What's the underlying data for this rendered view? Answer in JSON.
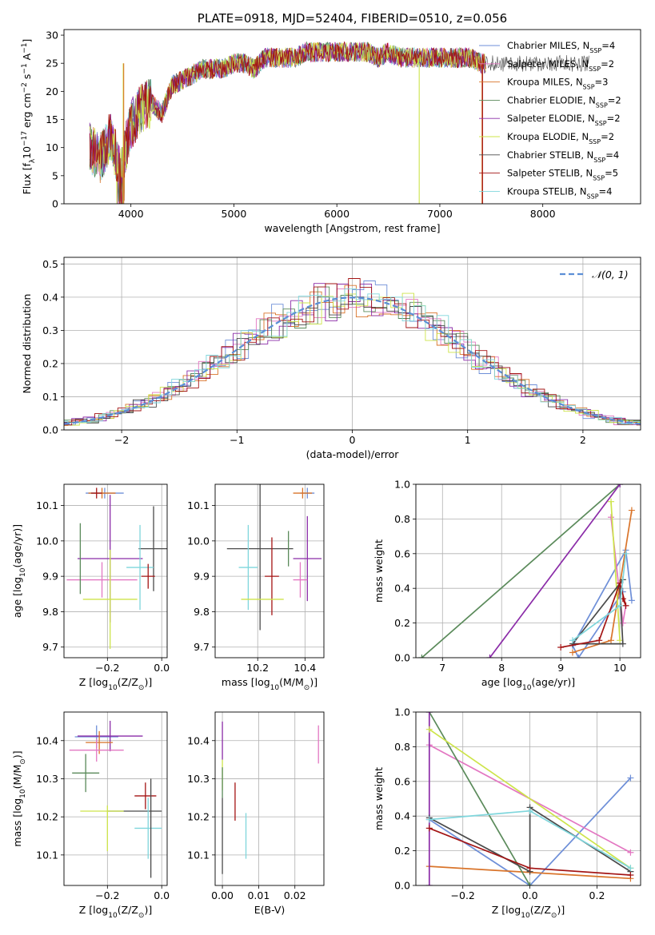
{
  "chart_data": [
    {
      "id": "spectrum",
      "type": "line",
      "title": "PLATE=0918, MJD=52404, FIBERID=0510, z=0.056",
      "xlabel": "wavelength [Angstrom, rest frame]",
      "ylabel": "Flux [f",
      "ylabel_sub": "λ",
      "ylabel_rest": "10",
      "ylabel_exp1": "−17",
      "ylabel_rest2": " erg cm",
      "ylabel_exp2": "−2",
      "ylabel_rest3": " s",
      "ylabel_exp3": "−1",
      "ylabel_rest4": " A",
      "ylabel_exp4": "−1",
      "ylabel_end": "]",
      "xlim": [
        3350,
        8950
      ],
      "ylim": [
        0,
        31
      ],
      "xticks": [
        4000,
        5000,
        6000,
        7000,
        8000
      ],
      "yticks": [
        0,
        5,
        10,
        15,
        20,
        25,
        30
      ],
      "grid": false,
      "legend_position": "top-right",
      "legend": [
        {
          "name": "Chabrier MILES, N",
          "sub": "SSP",
          "suffix": "=4",
          "color": "#6e8fd8"
        },
        {
          "name": "Salpeter MILES, N",
          "sub": "SSP",
          "suffix": "=2",
          "color": "#e377c2"
        },
        {
          "name": "Kroupa MILES, N",
          "sub": "SSP",
          "suffix": "=3",
          "color": "#d9742a"
        },
        {
          "name": "Chabrier ELODIE, N",
          "sub": "SSP",
          "suffix": "=2",
          "color": "#5a8a5a"
        },
        {
          "name": "Salpeter ELODIE, N",
          "sub": "SSP",
          "suffix": "=2",
          "color": "#8b2ca8"
        },
        {
          "name": "Kroupa ELODIE, N",
          "sub": "SSP",
          "suffix": "=2",
          "color": "#cde44a"
        },
        {
          "name": "Chabrier STELIB, N",
          "sub": "SSP",
          "suffix": "=4",
          "color": "#4a4a4a"
        },
        {
          "name": "Salpeter STELIB, N",
          "sub": "SSP",
          "suffix": "=5",
          "color": "#a31414"
        },
        {
          "name": "Kroupa STELIB, N",
          "sub": "SSP",
          "suffix": "=4",
          "color": "#7fd6dc"
        }
      ],
      "series": [
        {
          "name": "Chabrier MILES",
          "x": [
            3600,
            3700,
            3800,
            3900,
            4000,
            4100,
            4200,
            4300,
            4400,
            4500,
            4600,
            4700,
            4800,
            4900,
            5000,
            5100,
            5200,
            5300,
            5400,
            5500,
            5600,
            5700,
            5800,
            5900,
            6000,
            6100,
            6200,
            6300,
            6400,
            6500,
            6600,
            6700,
            6800,
            6900,
            7000,
            7100,
            7200,
            7300,
            7400,
            7450
          ],
          "y": [
            10,
            8,
            12,
            6,
            14,
            17,
            18,
            16,
            21,
            22,
            23,
            24,
            24,
            24,
            25,
            25,
            24,
            26,
            26,
            26,
            26,
            27,
            27,
            27,
            27,
            27,
            27,
            27,
            26,
            27,
            26,
            26,
            26,
            26,
            26,
            26,
            26,
            26,
            25,
            25
          ]
        }
      ]
    },
    {
      "id": "residuals",
      "type": "line",
      "xlabel": "(data-model)/error",
      "ylabel": "Normed distribution",
      "xlim": [
        -2.5,
        2.5
      ],
      "ylim": [
        0,
        0.52
      ],
      "xticks": [
        -2,
        -1,
        0,
        1,
        2
      ],
      "yticks": [
        0.0,
        0.1,
        0.2,
        0.3,
        0.4,
        0.5
      ],
      "grid": true,
      "legend_position": "top-right",
      "legend": [
        {
          "name": "𝒩(0, 1)",
          "color": "#5b8ed6"
        }
      ],
      "gaussian": {
        "mean": 0,
        "sigma": 1
      },
      "bin_width": 0.1
    },
    {
      "id": "z-age",
      "type": "scatter",
      "xlabel": "Z [log",
      "xlabel_sub": "10",
      "xlabel_rest": "(Z/Z",
      "xlabel_sub2": "⊙",
      "xlabel_end": ")]",
      "ylabel": "age  [log",
      "ylabel_sub": "10",
      "ylabel_rest": "(age/yr)]",
      "xlim": [
        -0.36,
        0.02
      ],
      "ylim": [
        9.67,
        10.16
      ],
      "xticks": [
        -0.2,
        0.0
      ],
      "yticks": [
        9.7,
        9.8,
        9.9,
        10.0,
        10.1
      ],
      "grid": true,
      "points": [
        {
          "x": -0.21,
          "y": 10.135,
          "xerr": 0.07,
          "yerr": 0.015,
          "color": "#6e8fd8"
        },
        {
          "x": -0.22,
          "y": 10.135,
          "xerr": 0.05,
          "yerr": 0.015,
          "color": "#d9742a"
        },
        {
          "x": -0.24,
          "y": 10.135,
          "xerr": 0.02,
          "yerr": 0.015,
          "color": "#a31414"
        },
        {
          "x": -0.03,
          "y": 9.978,
          "xerr": 0.055,
          "yerr": 0.12,
          "color": "#4a4a4a"
        },
        {
          "x": -0.19,
          "y": 9.95,
          "xerr": 0.12,
          "yerr": 0.18,
          "color": "#8b2ca8"
        },
        {
          "x": -0.08,
          "y": 9.925,
          "xerr": 0.05,
          "yerr": 0.12,
          "color": "#7fd6dc"
        },
        {
          "x": -0.05,
          "y": 9.9,
          "xerr": 0.025,
          "yerr": 0.035,
          "color": "#a31414"
        },
        {
          "x": -0.22,
          "y": 9.89,
          "xerr": 0.13,
          "yerr": 0.05,
          "color": "#e377c2"
        },
        {
          "x": -0.19,
          "y": 9.835,
          "xerr": 0.1,
          "yerr": 0.14,
          "color": "#cde44a"
        },
        {
          "x": -0.3,
          "y": 9.95,
          "xerr": 0.0,
          "yerr": 0.1,
          "color": "#5a8a5a"
        }
      ]
    },
    {
      "id": "mass-age",
      "type": "scatter",
      "xlabel": "mass [log",
      "xlabel_sub": "10",
      "xlabel_rest": "(M/M",
      "xlabel_sub2": "⊙",
      "xlabel_end": ")]",
      "xlim": [
        10.02,
        10.48
      ],
      "ylim": [
        9.67,
        10.16
      ],
      "xticks": [
        10.2,
        10.4
      ],
      "yticks": [
        9.7,
        9.8,
        9.9,
        10.0,
        10.1
      ],
      "grid": true,
      "points": [
        {
          "x": 10.41,
          "y": 10.135,
          "xerr": 0.03,
          "yerr": 0.015,
          "color": "#6e8fd8"
        },
        {
          "x": 10.39,
          "y": 10.135,
          "xerr": 0.04,
          "yerr": 0.015,
          "color": "#d9742a"
        },
        {
          "x": 10.21,
          "y": 9.978,
          "xerr": 0.14,
          "yerr": 0.23,
          "color": "#4a4a4a"
        },
        {
          "x": 10.41,
          "y": 9.95,
          "xerr": 0.06,
          "yerr": 0.12,
          "color": "#8b2ca8"
        },
        {
          "x": 10.16,
          "y": 9.925,
          "xerr": 0.04,
          "yerr": 0.12,
          "color": "#7fd6dc"
        },
        {
          "x": 10.26,
          "y": 9.9,
          "xerr": 0.03,
          "yerr": 0.11,
          "color": "#a31414"
        },
        {
          "x": 10.38,
          "y": 9.89,
          "xerr": 0.03,
          "yerr": 0.05,
          "color": "#e377c2"
        },
        {
          "x": 10.22,
          "y": 9.835,
          "xerr": 0.09,
          "yerr": 0.0,
          "color": "#cde44a"
        },
        {
          "x": 10.33,
          "y": 9.978,
          "xerr": 0.0,
          "yerr": 0.05,
          "color": "#5a8a5a"
        }
      ]
    },
    {
      "id": "age-weight",
      "type": "line",
      "xlabel": "age  [log",
      "xlabel_sub": "10",
      "xlabel_rest": "(age/yr)]",
      "ylabel": "mass weight",
      "xlim": [
        6.55,
        10.35
      ],
      "ylim": [
        0,
        1.0
      ],
      "xticks": [
        7,
        8,
        9,
        10
      ],
      "yticks": [
        0.0,
        0.2,
        0.4,
        0.6,
        0.8,
        1.0
      ],
      "grid": true,
      "series": [
        {
          "color": "#6e8fd8",
          "x": [
            10.2,
            10.1,
            9.2,
            9.3,
            10.05
          ],
          "y": [
            0.33,
            0.62,
            0.07,
            0.0,
            0.38
          ]
        },
        {
          "color": "#e377c2",
          "x": [
            9.85,
            10.05,
            10.1
          ],
          "y": [
            0.81,
            0.2,
            0.3
          ]
        },
        {
          "color": "#d9742a",
          "x": [
            10.2,
            9.85,
            9.2
          ],
          "y": [
            0.85,
            0.1,
            0.03
          ]
        },
        {
          "color": "#5a8a5a",
          "x": [
            6.65,
            10.0
          ],
          "y": [
            0.0,
            1.0
          ]
        },
        {
          "color": "#8b2ca8",
          "x": [
            7.8,
            10.0
          ],
          "y": [
            0.0,
            1.0
          ]
        },
        {
          "color": "#cde44a",
          "x": [
            9.85,
            10.0
          ],
          "y": [
            0.9,
            0.1
          ]
        },
        {
          "color": "#4a4a4a",
          "x": [
            10.05,
            9.2,
            10.05,
            10.0
          ],
          "y": [
            0.45,
            0.08,
            0.08,
            0.4
          ]
        },
        {
          "color": "#a31414",
          "x": [
            9.0,
            9.65,
            10.0,
            10.1,
            10.05
          ],
          "y": [
            0.06,
            0.1,
            0.43,
            0.3,
            0.34
          ]
        },
        {
          "color": "#7fd6dc",
          "x": [
            9.2,
            10.0,
            10.1
          ],
          "y": [
            0.1,
            0.3,
            0.6
          ]
        }
      ]
    },
    {
      "id": "z-mass",
      "type": "scatter",
      "xlabel": "Z [log",
      "xlabel_sub": "10",
      "xlabel_rest": "(Z/Z",
      "xlabel_sub2": "⊙",
      "xlabel_end": ")]",
      "ylabel": "mass [log",
      "ylabel_sub": "10",
      "ylabel_rest": "(M/M",
      "ylabel_sub2": "⊙",
      "ylabel_end": ")]",
      "xlim": [
        -0.36,
        0.02
      ],
      "ylim": [
        10.02,
        10.475
      ],
      "xticks": [
        -0.2,
        0.0
      ],
      "yticks": [
        10.1,
        10.2,
        10.3,
        10.4
      ],
      "grid": true,
      "points": [
        {
          "x": -0.24,
          "y": 10.41,
          "xerr": 0.08,
          "yerr": 0.03,
          "color": "#6e8fd8"
        },
        {
          "x": -0.19,
          "y": 10.412,
          "xerr": 0.12,
          "yerr": 0.04,
          "color": "#8b2ca8"
        },
        {
          "x": -0.23,
          "y": 10.395,
          "xerr": 0.05,
          "yerr": 0.03,
          "color": "#d9742a"
        },
        {
          "x": -0.24,
          "y": 10.375,
          "xerr": 0.1,
          "yerr": 0.03,
          "color": "#e377c2"
        },
        {
          "x": -0.28,
          "y": 10.315,
          "xerr": 0.05,
          "yerr": 0.05,
          "color": "#5a8a5a"
        },
        {
          "x": -0.06,
          "y": 10.255,
          "xerr": 0.04,
          "yerr": 0.035,
          "color": "#a31414"
        },
        {
          "x": -0.1,
          "y": 10.215,
          "xerr": 0.1,
          "yerr": 0.0,
          "color": "#4a4a4a"
        },
        {
          "x": -0.22,
          "y": 10.215,
          "xerr": 0.08,
          "yerr": 0.0,
          "color": "#cde44a"
        },
        {
          "x": -0.05,
          "y": 10.17,
          "xerr": 0.05,
          "yerr": 0.08,
          "color": "#7fd6dc"
        },
        {
          "x": -0.04,
          "y": 10.17,
          "xerr": 0.0,
          "yerr": 0.13,
          "color": "#4a4a4a"
        },
        {
          "x": -0.2,
          "y": 10.17,
          "xerr": 0.0,
          "yerr": 0.06,
          "color": "#cde44a"
        }
      ]
    },
    {
      "id": "ebv-mass",
      "type": "scatter",
      "xlabel": "E(B-V)",
      "xlim": [
        -0.002,
        0.028
      ],
      "ylim": [
        10.02,
        10.475
      ],
      "xticks": [
        0.0,
        0.01,
        0.02
      ],
      "yticks": [
        10.1,
        10.2,
        10.3,
        10.4
      ],
      "grid": true,
      "points": [
        {
          "x": 0.0,
          "y": 10.4,
          "xerr": 0.0,
          "yerr": 0.05,
          "color": "#8b2ca8"
        },
        {
          "x": 0.0,
          "y": 10.31,
          "xerr": 0.0,
          "yerr": 0.04,
          "color": "#cde44a"
        },
        {
          "x": 0.0,
          "y": 10.15,
          "xerr": 0.0,
          "yerr": 0.1,
          "color": "#4a4a4a"
        },
        {
          "x": 0.0,
          "y": 10.29,
          "xerr": 0.0,
          "yerr": 0.04,
          "color": "#5a8a5a"
        },
        {
          "x": 0.0035,
          "y": 10.24,
          "xerr": 0.0,
          "yerr": 0.05,
          "color": "#a31414"
        },
        {
          "x": 0.0065,
          "y": 10.15,
          "xerr": 0.0,
          "yerr": 0.06,
          "color": "#7fd6dc"
        },
        {
          "x": 0.0265,
          "y": 10.39,
          "xerr": 0.0,
          "yerr": 0.05,
          "color": "#e377c2"
        }
      ]
    },
    {
      "id": "z-weight",
      "type": "line",
      "xlabel": "Z [log",
      "xlabel_sub": "10",
      "xlabel_rest": "(Z/Z",
      "xlabel_sub2": "⊙",
      "xlabel_end": ")]",
      "ylabel": "mass weight",
      "xlim": [
        -0.34,
        0.33
      ],
      "ylim": [
        0,
        1.0
      ],
      "xticks": [
        -0.2,
        0.0,
        0.2
      ],
      "yticks": [
        0.0,
        0.2,
        0.4,
        0.6,
        0.8,
        1.0
      ],
      "grid": true,
      "series": [
        {
          "color": "#6e8fd8",
          "x": [
            -0.3,
            0.0,
            0.3
          ],
          "y": [
            0.38,
            0.0,
            0.62
          ]
        },
        {
          "color": "#e377c2",
          "x": [
            -0.3,
            0.3
          ],
          "y": [
            0.81,
            0.19
          ]
        },
        {
          "color": "#d9742a",
          "x": [
            -0.3,
            0.3
          ],
          "y": [
            0.11,
            0.04
          ]
        },
        {
          "color": "#5a8a5a",
          "x": [
            -0.3,
            0.0
          ],
          "y": [
            1.0,
            0.0
          ]
        },
        {
          "color": "#8b2ca8",
          "x": [
            -0.3,
            -0.3
          ],
          "y": [
            0.0,
            1.0
          ]
        },
        {
          "color": "#cde44a",
          "x": [
            -0.3,
            0.3
          ],
          "y": [
            0.9,
            0.1
          ]
        },
        {
          "color": "#4a4a4a",
          "x": [
            -0.3,
            0.0,
            0.0,
            0.3
          ],
          "y": [
            0.39,
            0.08,
            0.45,
            0.08
          ]
        },
        {
          "color": "#a31414",
          "x": [
            -0.3,
            0.0,
            0.3
          ],
          "y": [
            0.33,
            0.1,
            0.06
          ]
        },
        {
          "color": "#7fd6dc",
          "x": [
            -0.3,
            0.0,
            0.3
          ],
          "y": [
            0.38,
            0.43,
            0.1
          ]
        }
      ]
    }
  ]
}
